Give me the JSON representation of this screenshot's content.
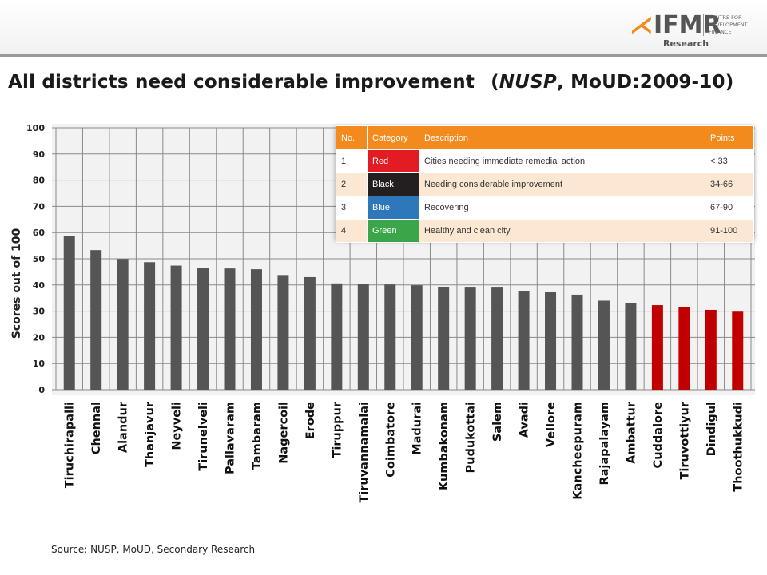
{
  "header": {
    "logo_text": "IFMR",
    "logo_sub": "Research",
    "logo_center": "CENTRE FOR DEVELOPMENT FINANCE"
  },
  "title": {
    "main": "All districts need considerable improvement",
    "paren_open": "(",
    "nusp": "NUSP",
    "rest": ", MoUD:2009-10)"
  },
  "source": "Source: NUSP, MoUD, Secondary Research",
  "colors": {
    "bar": "#555555",
    "bar_red": "#c00000",
    "accent": "#f28a1e"
  },
  "chart_data": {
    "type": "bar",
    "title": "",
    "xlabel": "",
    "ylabel": "Scores  out of 100",
    "ylim": [
      0,
      100
    ],
    "yticks": [
      0,
      10,
      20,
      30,
      40,
      50,
      60,
      70,
      80,
      90,
      100
    ],
    "grid": true,
    "categories": [
      "Tiruchirapalli",
      "Chennai",
      "Alandur",
      "Thanjavur",
      "Neyveli",
      "Tirunelveli",
      "Pallavaram",
      "Tambaram",
      "Nagercoil",
      "Erode",
      "Tiruppur",
      "Tiruvannamalai",
      "Coimbatore",
      "Madurai",
      "Kumbakonam",
      "Pudukottai",
      "Salem",
      "Avadi",
      "Vellore",
      "Kancheepuram",
      "Rajapalayam",
      "Ambattur",
      "Cuddalore",
      "Tiruvottiyur",
      "Dindigul",
      "Thoothukkudi"
    ],
    "values": [
      58.8,
      53.3,
      49.9,
      48.7,
      47.4,
      46.6,
      46.3,
      46.0,
      43.8,
      43.0,
      40.6,
      40.5,
      40.2,
      39.9,
      39.3,
      39.0,
      39.0,
      37.5,
      37.2,
      36.3,
      34.0,
      33.2,
      32.3,
      31.7,
      30.5,
      29.8
    ],
    "bar_colors": [
      "#555555",
      "#555555",
      "#555555",
      "#555555",
      "#555555",
      "#555555",
      "#555555",
      "#555555",
      "#555555",
      "#555555",
      "#555555",
      "#555555",
      "#555555",
      "#555555",
      "#555555",
      "#555555",
      "#555555",
      "#555555",
      "#555555",
      "#555555",
      "#555555",
      "#555555",
      "#c00000",
      "#c00000",
      "#c00000",
      "#c00000"
    ]
  },
  "legend_table": {
    "headers": [
      "No.",
      "Category",
      "Description",
      "Points"
    ],
    "rows": [
      {
        "no": "1",
        "category": "Red",
        "color": "#e31b23",
        "description": "Cities needing immediate remedial action",
        "points": "< 33"
      },
      {
        "no": "2",
        "category": "Black",
        "color": "#231f20",
        "description": "Needing considerable improvement",
        "points": "34-66"
      },
      {
        "no": "3",
        "category": "Blue",
        "color": "#2e77bb",
        "description": "Recovering",
        "points": "67-90"
      },
      {
        "no": "4",
        "category": "Green",
        "color": "#3aa549",
        "description": "Healthy and clean city",
        "points": "91-100"
      }
    ]
  }
}
